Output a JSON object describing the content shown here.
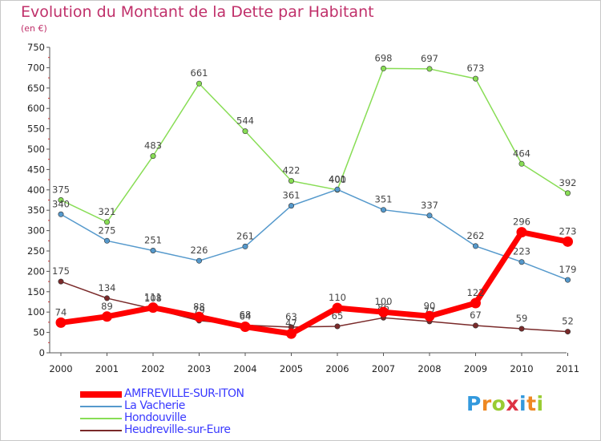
{
  "chart_data": {
    "type": "line",
    "title": "Evolution du Montant de la Dette par Habitant",
    "unit": "(en €)",
    "x": [
      "2000",
      "2001",
      "2002",
      "2003",
      "2004",
      "2005",
      "2006",
      "2007",
      "2008",
      "2009",
      "2010",
      "2011"
    ],
    "ylim": [
      0,
      750
    ],
    "yticks": [
      0,
      50,
      100,
      150,
      200,
      250,
      300,
      350,
      400,
      450,
      500,
      550,
      600,
      650,
      700,
      750
    ],
    "grid": false,
    "legend_position": "bottom-left",
    "series": [
      {
        "name": "Heudreville-sur-Eure",
        "color": "#7a2a2a",
        "values": [
          175,
          134,
          108,
          79,
          68,
          63,
          65,
          86,
          77,
          67,
          59,
          52
        ]
      },
      {
        "name": "Hondouville",
        "color": "#88dd55",
        "values": [
          375,
          321,
          483,
          661,
          544,
          422,
          400,
          698,
          697,
          673,
          464,
          392
        ]
      },
      {
        "name": "La Vacherie",
        "color": "#5599cc",
        "values": [
          340,
          275,
          251,
          226,
          261,
          361,
          401,
          351,
          337,
          262,
          223,
          179
        ]
      },
      {
        "name": "AMFREVILLE-SUR-ITON",
        "color": "#ff0000",
        "values": [
          74,
          89,
          111,
          88,
          64,
          47,
          110,
          100,
          90,
          122,
          296,
          273
        ]
      }
    ]
  },
  "legend": {
    "items": [
      {
        "label": "AMFREVILLE-SUR-ITON",
        "color": "#ff0000"
      },
      {
        "label": "La Vacherie",
        "color": "#5599cc"
      },
      {
        "label": "Hondouville",
        "color": "#88dd55"
      },
      {
        "label": "Heudreville-sur-Eure",
        "color": "#7a2a2a"
      }
    ]
  },
  "logo": {
    "letters": [
      {
        "ch": "P",
        "color": "#3399dd"
      },
      {
        "ch": "r",
        "color": "#ee8822"
      },
      {
        "ch": "o",
        "color": "#99cc33"
      },
      {
        "ch": "x",
        "color": "#dd3344"
      },
      {
        "ch": "i",
        "color": "#3399dd"
      },
      {
        "ch": "t",
        "color": "#ee8822"
      },
      {
        "ch": "i",
        "color": "#99cc33"
      }
    ]
  }
}
